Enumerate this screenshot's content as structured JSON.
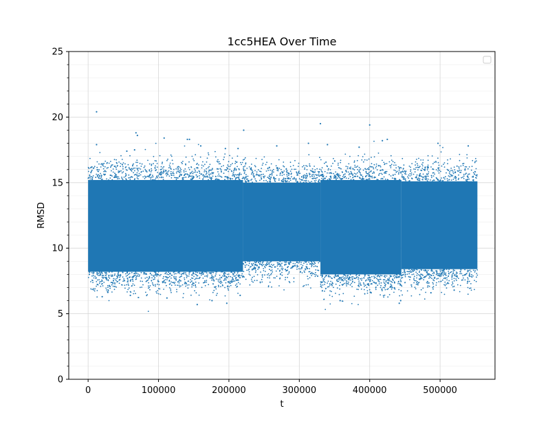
{
  "chart_data": {
    "type": "scatter",
    "title": "1cc5HEA Over Time",
    "xlabel": "t",
    "ylabel": "RMSD",
    "xlim": [
      -27500,
      578000
    ],
    "ylim": [
      0,
      25
    ],
    "x_ticks": [
      0,
      100000,
      200000,
      300000,
      400000,
      500000
    ],
    "x_tick_labels": [
      "0",
      "100000",
      "200000",
      "300000",
      "400000",
      "500000"
    ],
    "y_ticks": [
      0,
      5,
      10,
      15,
      20,
      25
    ],
    "y_tick_labels": [
      "0",
      "5",
      "10",
      "15",
      "20",
      "25"
    ],
    "grid": true,
    "legend": "top-right",
    "marker_color": "#1f77b4",
    "series": [
      {
        "x_range": [
          0,
          553000
        ],
        "dense_band": [
          {
            "x": [
              0,
              220000
            ],
            "y": [
              8.2,
              15.2
            ]
          },
          {
            "x": [
              220000,
              330000
            ],
            "y": [
              9.0,
              15.0
            ]
          },
          {
            "x": [
              330000,
              445000
            ],
            "y": [
              8.0,
              15.2
            ]
          },
          {
            "x": [
              445000,
              553000
            ],
            "y": [
              8.4,
              15.1
            ]
          }
        ],
        "outliers": [
          [
            12000,
            20.4
          ],
          [
            68000,
            18.8
          ],
          [
            70000,
            18.6
          ],
          [
            108000,
            18.4
          ],
          [
            141000,
            18.3
          ],
          [
            144000,
            18.3
          ],
          [
            221000,
            19.0
          ],
          [
            330000,
            19.5
          ],
          [
            400000,
            19.4
          ],
          [
            418000,
            18.2
          ],
          [
            425000,
            18.3
          ],
          [
            497000,
            18.0
          ],
          [
            12000,
            17.9
          ],
          [
            55000,
            17.4
          ],
          [
            66000,
            17.5
          ],
          [
            160000,
            17.8
          ],
          [
            195000,
            17.6
          ],
          [
            213000,
            17.6
          ],
          [
            268000,
            17.8
          ],
          [
            313000,
            18.0
          ],
          [
            340000,
            17.9
          ],
          [
            385000,
            17.7
          ],
          [
            540000,
            17.8
          ],
          [
            155000,
            5.7
          ],
          [
            197000,
            5.8
          ],
          [
            358000,
            6.0
          ],
          [
            442000,
            5.8
          ],
          [
            444000,
            6.0
          ],
          [
            20000,
            6.3
          ],
          [
            60000,
            6.4
          ],
          [
            112000,
            6.2
          ],
          [
            176000,
            6.0
          ],
          [
            216000,
            6.4
          ],
          [
            402000,
            6.6
          ],
          [
            487000,
            6.6
          ],
          [
            520000,
            6.8
          ]
        ]
      }
    ]
  }
}
